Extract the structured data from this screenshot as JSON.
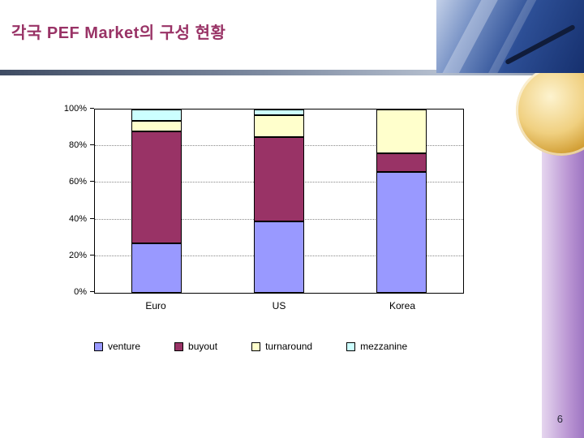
{
  "slide": {
    "title": "각국 PEF Market의 구성 현황",
    "page_number": "6"
  },
  "chart_data": {
    "type": "bar",
    "stacked": true,
    "percent_stacked": true,
    "categories": [
      "Euro",
      "US",
      "Korea"
    ],
    "series": [
      {
        "name": "venture",
        "color": "#9999FF",
        "values": [
          27,
          39,
          66
        ]
      },
      {
        "name": "buyout",
        "color": "#993366",
        "values": [
          61,
          46,
          10
        ]
      },
      {
        "name": "turnaround",
        "color": "#FFFFCC",
        "values": [
          6,
          12,
          24
        ]
      },
      {
        "name": "mezzanine",
        "color": "#CCFFFF",
        "values": [
          6,
          3,
          0
        ]
      }
    ],
    "title": "",
    "xlabel": "",
    "ylabel": "",
    "ylim": [
      0,
      100
    ],
    "ytick_labels": [
      "0%",
      "20%",
      "40%",
      "60%",
      "80%",
      "100%"
    ],
    "grid": "dotted-horizontal",
    "legend_position": "bottom"
  }
}
